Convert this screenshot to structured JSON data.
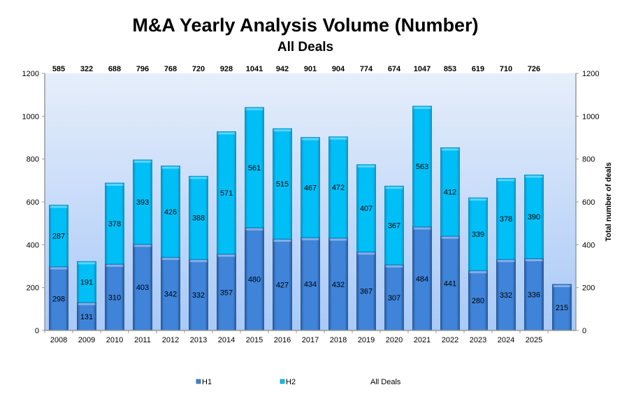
{
  "chart_data": {
    "type": "bar",
    "stacked": true,
    "title": "M&A Yearly Analysis Volume (Number)",
    "subtitle": "All Deals",
    "categories": [
      "2008",
      "2009",
      "2010",
      "2011",
      "2012",
      "2013",
      "2014",
      "2015",
      "2016",
      "2017",
      "2018",
      "2019",
      "2020",
      "2021",
      "2022",
      "2023",
      "2024",
      "2025",
      ""
    ],
    "series": [
      {
        "name": "H1",
        "color": "#3a7fd5",
        "values": [
          298,
          131,
          310,
          403,
          342,
          332,
          357,
          480,
          427,
          434,
          432,
          367,
          307,
          484,
          441,
          280,
          332,
          336,
          215
        ]
      },
      {
        "name": "H2",
        "color": "#00bbf5",
        "values": [
          287,
          191,
          378,
          393,
          426,
          388,
          571,
          561,
          515,
          467,
          472,
          407,
          367,
          563,
          412,
          339,
          378,
          390,
          null
        ]
      }
    ],
    "totals_series_name": "All Deals",
    "totals": [
      585,
      322,
      688,
      796,
      768,
      720,
      928,
      1041,
      942,
      901,
      904,
      774,
      674,
      1047,
      853,
      619,
      710,
      726,
      null
    ],
    "ylim": [
      0,
      1200
    ],
    "yticks": [
      0,
      200,
      400,
      600,
      800,
      1000,
      1200
    ],
    "y2label": "Total number of deals",
    "xlabel": "",
    "ylabel": "",
    "grid": false,
    "legend": "bottom",
    "plot_background": [
      "#e6eefa",
      "#a9c9f8"
    ]
  }
}
